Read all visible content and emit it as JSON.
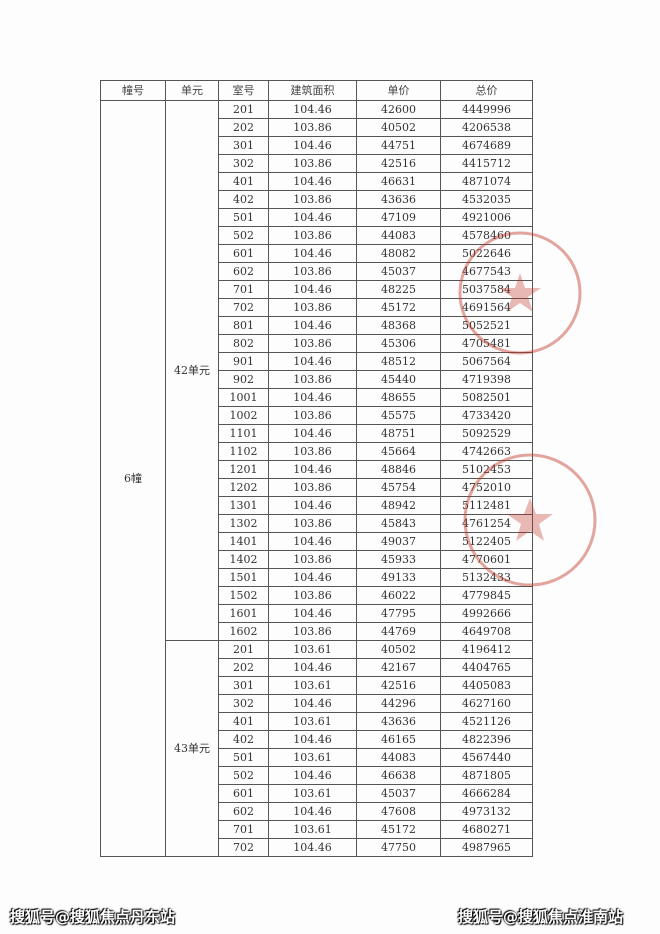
{
  "table": {
    "headers": [
      "幢号",
      "单元",
      "室号",
      "建筑面积",
      "单价",
      "总价"
    ],
    "building": "6幢",
    "units": [
      {
        "name": "42单元",
        "rows": [
          [
            "201",
            "104.46",
            "42600",
            "4449996"
          ],
          [
            "202",
            "103.86",
            "40502",
            "4206538"
          ],
          [
            "301",
            "104.46",
            "44751",
            "4674689"
          ],
          [
            "302",
            "103.86",
            "42516",
            "4415712"
          ],
          [
            "401",
            "104.46",
            "46631",
            "4871074"
          ],
          [
            "402",
            "103.86",
            "43636",
            "4532035"
          ],
          [
            "501",
            "104.46",
            "47109",
            "4921006"
          ],
          [
            "502",
            "103.86",
            "44083",
            "4578460"
          ],
          [
            "601",
            "104.46",
            "48082",
            "5022646"
          ],
          [
            "602",
            "103.86",
            "45037",
            "4677543"
          ],
          [
            "701",
            "104.46",
            "48225",
            "5037584"
          ],
          [
            "702",
            "103.86",
            "45172",
            "4691564"
          ],
          [
            "801",
            "104.46",
            "48368",
            "5052521"
          ],
          [
            "802",
            "103.86",
            "45306",
            "4705481"
          ],
          [
            "901",
            "104.46",
            "48512",
            "5067564"
          ],
          [
            "902",
            "103.86",
            "45440",
            "4719398"
          ],
          [
            "1001",
            "104.46",
            "48655",
            "5082501"
          ],
          [
            "1002",
            "103.86",
            "45575",
            "4733420"
          ],
          [
            "1101",
            "104.46",
            "48751",
            "5092529"
          ],
          [
            "1102",
            "103.86",
            "45664",
            "4742663"
          ],
          [
            "1201",
            "104.46",
            "48846",
            "5102453"
          ],
          [
            "1202",
            "103.86",
            "45754",
            "4752010"
          ],
          [
            "1301",
            "104.46",
            "48942",
            "5112481"
          ],
          [
            "1302",
            "103.86",
            "45843",
            "4761254"
          ],
          [
            "1401",
            "104.46",
            "49037",
            "5122405"
          ],
          [
            "1402",
            "103.86",
            "45933",
            "4770601"
          ],
          [
            "1501",
            "104.46",
            "49133",
            "5132433"
          ],
          [
            "1502",
            "103.86",
            "46022",
            "4779845"
          ],
          [
            "1601",
            "104.46",
            "47795",
            "4992666"
          ],
          [
            "1602",
            "103.86",
            "44769",
            "4649708"
          ]
        ]
      },
      {
        "name": "43单元",
        "rows": [
          [
            "201",
            "103.61",
            "40502",
            "4196412"
          ],
          [
            "202",
            "104.46",
            "42167",
            "4404765"
          ],
          [
            "301",
            "103.61",
            "42516",
            "4405083"
          ],
          [
            "302",
            "104.46",
            "44296",
            "4627160"
          ],
          [
            "401",
            "103.61",
            "43636",
            "4521126"
          ],
          [
            "402",
            "104.46",
            "46165",
            "4822396"
          ],
          [
            "501",
            "103.61",
            "44083",
            "4567440"
          ],
          [
            "502",
            "104.46",
            "46638",
            "4871805"
          ],
          [
            "601",
            "103.61",
            "45037",
            "4666284"
          ],
          [
            "602",
            "104.46",
            "47608",
            "4973132"
          ],
          [
            "701",
            "103.61",
            "45172",
            "4680271"
          ],
          [
            "702",
            "104.46",
            "47750",
            "4987965"
          ]
        ]
      }
    ]
  },
  "stamp_color": "#c0392b",
  "watermarks": {
    "left": "搜狐号@搜狐焦点丹东站",
    "right": "搜狐号@搜狐焦点淮南站"
  }
}
